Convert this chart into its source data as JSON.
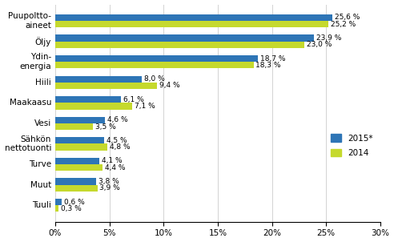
{
  "categories": [
    "Puupoltto-\naineet",
    "Öljy",
    "Ydin-\nenergia",
    "Hiili",
    "Maakaasu",
    "Vesi",
    "Sähkön\nnettotuonti",
    "Turve",
    "Muut",
    "Tuuli"
  ],
  "values_2015": [
    25.6,
    23.9,
    18.7,
    8.0,
    6.1,
    4.6,
    4.5,
    4.1,
    3.8,
    0.6
  ],
  "values_2014": [
    25.2,
    23.0,
    18.3,
    9.4,
    7.1,
    3.5,
    4.8,
    4.4,
    3.9,
    0.3
  ],
  "color_2015": "#2E75B6",
  "color_2014": "#C5D92D",
  "xlim": [
    0,
    30
  ],
  "xticks": [
    0,
    5,
    10,
    15,
    20,
    25,
    30
  ],
  "xticklabels": [
    "0%",
    "5%",
    "10%",
    "15%",
    "20%",
    "25%",
    "30%"
  ],
  "legend_2015": "2015*",
  "legend_2014": "2014",
  "label_fontsize": 6.5,
  "tick_fontsize": 7.5,
  "bar_height": 0.32
}
